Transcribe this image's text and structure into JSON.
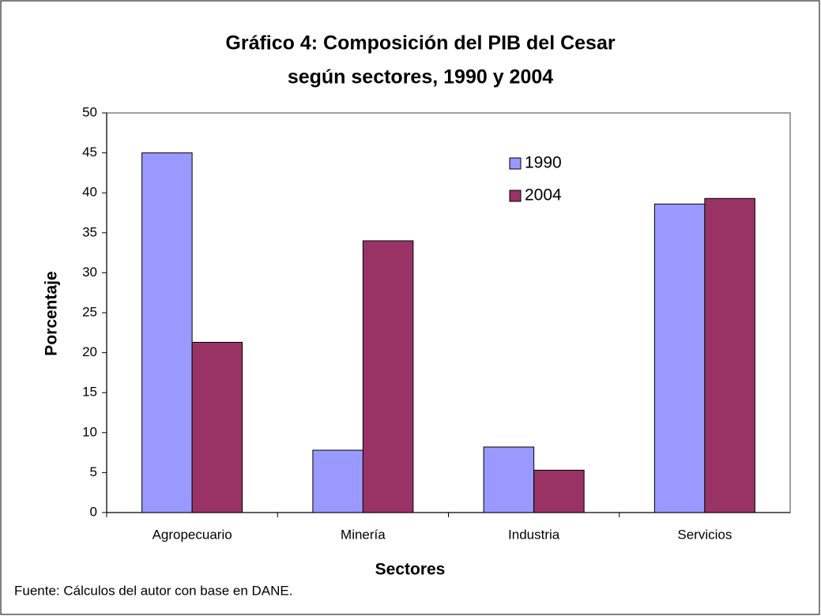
{
  "chart_data": {
    "type": "bar",
    "title": [
      "Gráfico 4: Composición del PIB del Cesar",
      "según sectores, 1990 y 2004"
    ],
    "x_label": "Sectores",
    "y_label": "Porcentaje",
    "note": "Fuente: Cálculos del autor con base en DANE.",
    "categories": [
      "Agropecuario",
      "Minería",
      "Industria",
      "Servicios"
    ],
    "series": [
      {
        "name": "1990",
        "color": "#9999ff",
        "values": [
          45,
          7.8,
          8.2,
          38.6
        ]
      },
      {
        "name": "2004",
        "color": "#993366",
        "values": [
          21.3,
          34,
          5.3,
          39.3
        ]
      }
    ],
    "ylim": [
      0,
      50
    ],
    "yticks": [
      0,
      5,
      10,
      15,
      20,
      25,
      30,
      35,
      40,
      45,
      50
    ],
    "grid": false,
    "legend": "upper right"
  }
}
